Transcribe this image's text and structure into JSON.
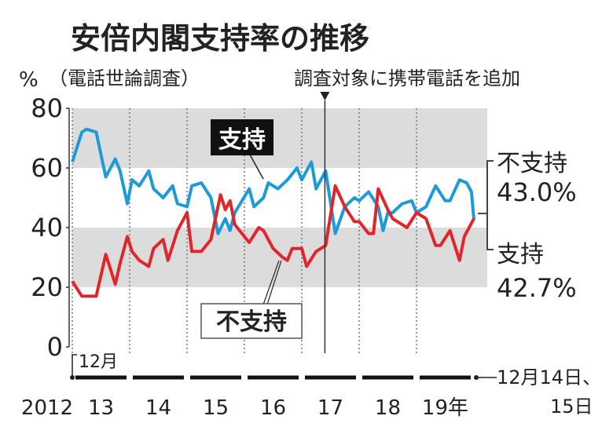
{
  "chart_data": {
    "type": "line",
    "title": "安倍内閣支持率の推移",
    "subtitle": "（電話世論調査）",
    "ylabel": "%",
    "ylim": [
      0,
      80
    ],
    "yticks": [
      "0",
      "20",
      "40",
      "60",
      "80"
    ],
    "x_unit": "months since December 2012",
    "x_start_label": "12月",
    "xticks": [
      "2012",
      "13",
      "14",
      "15",
      "16",
      "17",
      "18",
      "19年"
    ],
    "x_end_label_1": "12月14日、",
    "x_end_label_2": "15日",
    "annotation_method_change": "調査対象に携帯電話を追加",
    "method_change_month": 53,
    "grid": "gray bands 20-40 and 60-80, dotted yearly lines",
    "series": [
      {
        "name": "支持",
        "color": "#1e9ad6",
        "final_label": "支持",
        "final_value": "42.7%",
        "points": [
          [
            0,
            62
          ],
          [
            2,
            72
          ],
          [
            3,
            73
          ],
          [
            5,
            72
          ],
          [
            7,
            57
          ],
          [
            9,
            63
          ],
          [
            10,
            59
          ],
          [
            11.5,
            48
          ],
          [
            12.5,
            56
          ],
          [
            14,
            54
          ],
          [
            16,
            59
          ],
          [
            17,
            53
          ],
          [
            19,
            50
          ],
          [
            21,
            54
          ],
          [
            22,
            48
          ],
          [
            24,
            47
          ],
          [
            25,
            54
          ],
          [
            27,
            55
          ],
          [
            29,
            50
          ],
          [
            30.5,
            38
          ],
          [
            32,
            43
          ],
          [
            33,
            39
          ],
          [
            34,
            45
          ],
          [
            37,
            53
          ],
          [
            38,
            47
          ],
          [
            40,
            50
          ],
          [
            41,
            55
          ],
          [
            43,
            53
          ],
          [
            45,
            56
          ],
          [
            47,
            60
          ],
          [
            48,
            56
          ],
          [
            50,
            62
          ],
          [
            51,
            53
          ],
          [
            53,
            59
          ],
          [
            55,
            38
          ],
          [
            57,
            47
          ],
          [
            59,
            50
          ],
          [
            60,
            49
          ],
          [
            62,
            52
          ],
          [
            64,
            47
          ],
          [
            65,
            39
          ],
          [
            66,
            45
          ],
          [
            67,
            45
          ],
          [
            69,
            48
          ],
          [
            71,
            49
          ],
          [
            72,
            45
          ],
          [
            74,
            47
          ],
          [
            76,
            54
          ],
          [
            78,
            49
          ],
          [
            79,
            49
          ],
          [
            81,
            56
          ],
          [
            82.5,
            55
          ],
          [
            83.5,
            52
          ],
          [
            84,
            42.7
          ]
        ]
      },
      {
        "name": "不支持",
        "color": "#e0262d",
        "final_label": "不支持",
        "final_value": "43.0%",
        "points": [
          [
            0,
            22
          ],
          [
            2,
            17
          ],
          [
            5,
            17
          ],
          [
            7,
            31
          ],
          [
            9,
            21
          ],
          [
            10,
            28
          ],
          [
            11.5,
            37
          ],
          [
            12.5,
            32
          ],
          [
            14,
            29
          ],
          [
            16,
            27
          ],
          [
            17,
            33
          ],
          [
            19,
            36
          ],
          [
            20,
            29
          ],
          [
            22,
            39
          ],
          [
            24,
            45
          ],
          [
            25,
            32
          ],
          [
            27,
            32
          ],
          [
            29,
            36
          ],
          [
            31,
            51
          ],
          [
            32,
            46
          ],
          [
            33,
            49
          ],
          [
            34,
            41
          ],
          [
            37,
            35
          ],
          [
            39,
            40
          ],
          [
            40,
            39
          ],
          [
            42,
            33
          ],
          [
            44,
            30
          ],
          [
            45,
            29
          ],
          [
            46,
            33
          ],
          [
            48,
            33
          ],
          [
            49,
            27
          ],
          [
            51,
            32
          ],
          [
            53,
            34
          ],
          [
            55,
            54
          ],
          [
            57,
            47
          ],
          [
            59,
            42
          ],
          [
            60,
            42
          ],
          [
            62,
            38
          ],
          [
            63,
            38
          ],
          [
            64,
            53
          ],
          [
            66,
            46
          ],
          [
            67,
            43
          ],
          [
            70,
            40
          ],
          [
            72,
            45
          ],
          [
            74,
            43
          ],
          [
            76,
            34
          ],
          [
            77,
            34
          ],
          [
            79,
            39
          ],
          [
            81,
            29
          ],
          [
            82,
            37
          ],
          [
            84,
            43.0
          ]
        ]
      }
    ]
  }
}
